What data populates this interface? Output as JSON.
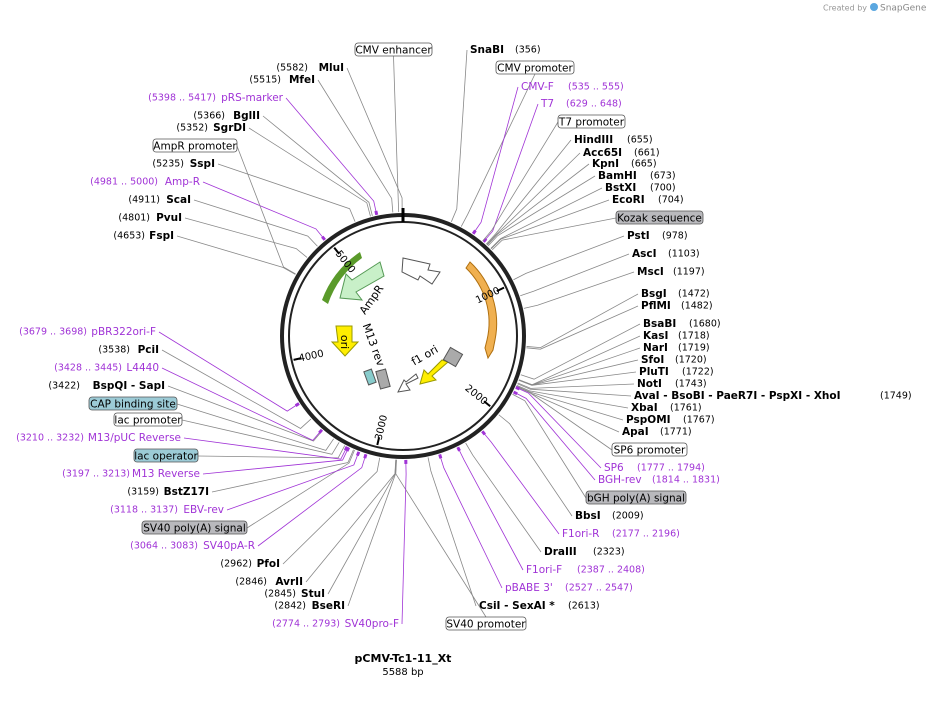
{
  "header": {
    "credit": "Created by",
    "brand": "SnapGene"
  },
  "map": {
    "name": "pCMV-Tc1-11_Xt",
    "length": "5588 bp",
    "ring_ticks": [
      1000,
      2000,
      3000,
      4000,
      5000
    ],
    "inner_features": [
      "AmpR",
      "ori",
      "M13 rev",
      "f1 ori"
    ],
    "labels": [
      {
        "kind": "feature",
        "name": "CMV enhancer"
      },
      {
        "kind": "site",
        "name": "SnaBI",
        "pos": "(356)"
      },
      {
        "kind": "feature",
        "name": "CMV promoter"
      },
      {
        "kind": "primer",
        "name": "CMV-F",
        "pos": "(535 .. 555)"
      },
      {
        "kind": "primer",
        "name": "T7",
        "pos": "(629 .. 648)"
      },
      {
        "kind": "feature",
        "name": "T7 promoter"
      },
      {
        "kind": "site",
        "name": "HindIII",
        "pos": "(655)"
      },
      {
        "kind": "site",
        "name": "Acc65I",
        "pos": "(661)"
      },
      {
        "kind": "site",
        "name": "KpnI",
        "pos": "(665)"
      },
      {
        "kind": "site",
        "name": "BamHI",
        "pos": "(673)"
      },
      {
        "kind": "site",
        "name": "BstXI",
        "pos": "(700)"
      },
      {
        "kind": "site",
        "name": "EcoRI",
        "pos": "(704)"
      },
      {
        "kind": "feature-gray",
        "name": "Kozak sequence"
      },
      {
        "kind": "site",
        "name": "PstI",
        "pos": "(978)"
      },
      {
        "kind": "site",
        "name": "AscI",
        "pos": "(1103)"
      },
      {
        "kind": "site",
        "name": "MscI",
        "pos": "(1197)"
      },
      {
        "kind": "site",
        "name": "BsgI",
        "pos": "(1472)"
      },
      {
        "kind": "site",
        "name": "PflMI",
        "pos": "(1482)"
      },
      {
        "kind": "site",
        "name": "BsaBI",
        "pos": "(1680)"
      },
      {
        "kind": "site",
        "name": "KasI",
        "pos": "(1718)"
      },
      {
        "kind": "site",
        "name": "NarI",
        "pos": "(1719)"
      },
      {
        "kind": "site",
        "name": "SfoI",
        "pos": "(1720)"
      },
      {
        "kind": "site",
        "name": "PluTI",
        "pos": "(1722)"
      },
      {
        "kind": "site",
        "name": "NotI",
        "pos": "(1743)"
      },
      {
        "kind": "site",
        "name": "AvaI - BsoBI - PaeR7I - PspXI - XhoI",
        "pos": "(1749)"
      },
      {
        "kind": "site",
        "name": "XbaI",
        "pos": "(1761)"
      },
      {
        "kind": "site",
        "name": "PspOMI",
        "pos": "(1767)"
      },
      {
        "kind": "site",
        "name": "ApaI",
        "pos": "(1771)"
      },
      {
        "kind": "feature",
        "name": "SP6 promoter"
      },
      {
        "kind": "primer",
        "name": "SP6",
        "pos": "(1777 .. 1794)"
      },
      {
        "kind": "primer",
        "name": "BGH-rev",
        "pos": "(1814 .. 1831)"
      },
      {
        "kind": "feature-gray",
        "name": "bGH poly(A) signal"
      },
      {
        "kind": "site",
        "name": "BbsI",
        "pos": "(2009)"
      },
      {
        "kind": "primer",
        "name": "F1ori-R",
        "pos": "(2177 .. 2196)"
      },
      {
        "kind": "site",
        "name": "DraIII",
        "pos": "(2323)"
      },
      {
        "kind": "primer",
        "name": "F1ori-F",
        "pos": "(2387 .. 2408)"
      },
      {
        "kind": "primer",
        "name": "pBABE 3'",
        "pos": "(2527 .. 2547)"
      },
      {
        "kind": "site",
        "name": "CsiI - SexAI *",
        "pos": "(2613)"
      },
      {
        "kind": "feature",
        "name": "SV40 promoter"
      },
      {
        "kind": "primer",
        "name": "SV40pro-F",
        "pos": "(2774 .. 2793)"
      },
      {
        "kind": "site",
        "name": "BseRI",
        "pos": "(2842)"
      },
      {
        "kind": "site",
        "name": "StuI",
        "pos": "(2845)"
      },
      {
        "kind": "site",
        "name": "AvrII",
        "pos": "(2846)"
      },
      {
        "kind": "site",
        "name": "PfoI",
        "pos": "(2962)"
      },
      {
        "kind": "primer",
        "name": "SV40pA-R",
        "pos": "(3064 .. 3083)"
      },
      {
        "kind": "feature-gray",
        "name": "SV40 poly(A) signal"
      },
      {
        "kind": "primer",
        "name": "EBV-rev",
        "pos": "(3118 .. 3137)"
      },
      {
        "kind": "site",
        "name": "BstZ17I",
        "pos": "(3159)"
      },
      {
        "kind": "primer",
        "name": "M13 Reverse",
        "pos": "(3197 .. 3213)"
      },
      {
        "kind": "feature-blue",
        "name": "lac operator"
      },
      {
        "kind": "primer",
        "name": "M13/pUC Reverse",
        "pos": "(3210 .. 3232)"
      },
      {
        "kind": "feature",
        "name": "lac promoter"
      },
      {
        "kind": "feature-blue",
        "name": "CAP binding site"
      },
      {
        "kind": "site",
        "name": "BspQI - SapI",
        "pos": "(3422)"
      },
      {
        "kind": "primer",
        "name": "L4440",
        "pos": "(3428 .. 3445)"
      },
      {
        "kind": "site",
        "name": "PciI",
        "pos": "(3538)"
      },
      {
        "kind": "primer",
        "name": "pBR322ori-F",
        "pos": "(3679 .. 3698)"
      },
      {
        "kind": "site",
        "name": "FspI",
        "pos": "(4653)"
      },
      {
        "kind": "site",
        "name": "PvuI",
        "pos": "(4801)"
      },
      {
        "kind": "site",
        "name": "ScaI",
        "pos": "(4911)"
      },
      {
        "kind": "primer",
        "name": "Amp-R",
        "pos": "(4981 .. 5000)"
      },
      {
        "kind": "site",
        "name": "SspI",
        "pos": "(5235)"
      },
      {
        "kind": "feature",
        "name": "AmpR promoter"
      },
      {
        "kind": "site",
        "name": "SgrDI",
        "pos": "(5352)"
      },
      {
        "kind": "site",
        "name": "BglII",
        "pos": "(5366)"
      },
      {
        "kind": "primer",
        "name": "pRS-marker",
        "pos": "(5398 .. 5417)"
      },
      {
        "kind": "site",
        "name": "MfeI",
        "pos": "(5515)"
      },
      {
        "kind": "site",
        "name": "MluI",
        "pos": "(5582)"
      }
    ]
  }
}
